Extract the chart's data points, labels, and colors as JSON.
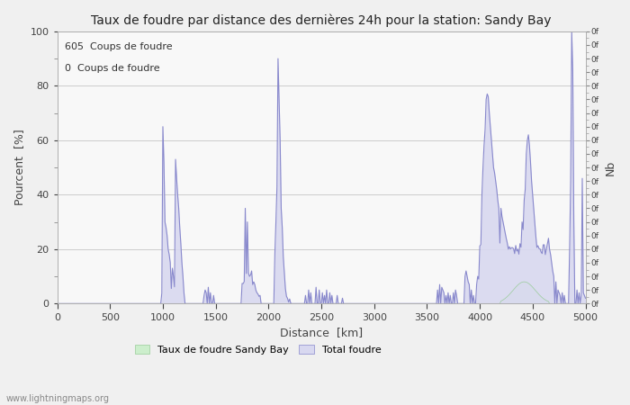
{
  "title": "Taux de foudre par distance des dernières 24h pour la station: Sandy Bay",
  "xlabel": "Distance  [km]",
  "ylabel_left": "Pourcent  [%]",
  "ylabel_right": "Nb",
  "annotation_line1": "605  Coups de foudre",
  "annotation_line2": "0  Coups de foudre",
  "legend_label1": "Taux de foudre Sandy Bay",
  "legend_label2": "Total foudre",
  "watermark": "www.lightningmaps.org",
  "xlim": [
    0,
    5000
  ],
  "ylim_left": [
    0,
    100
  ],
  "ylim_right": [
    0,
    100
  ],
  "xticks": [
    0,
    500,
    1000,
    1500,
    2000,
    2500,
    3000,
    3500,
    4000,
    4500,
    5000
  ],
  "yticks_left": [
    0,
    20,
    40,
    60,
    80,
    100
  ],
  "yticks_minor_left": [
    10,
    30,
    50,
    70,
    90
  ],
  "bg_color": "#f0f0f0",
  "plot_bg_color": "#f8f8f8",
  "grid_color": "#cccccc",
  "line_color": "#8888cc",
  "fill_color": "#d8d8f0",
  "green_fill_color": "#cceecc",
  "green_line_color": "#99cc99",
  "figsize": [
    7.0,
    4.5
  ],
  "dpi": 100
}
